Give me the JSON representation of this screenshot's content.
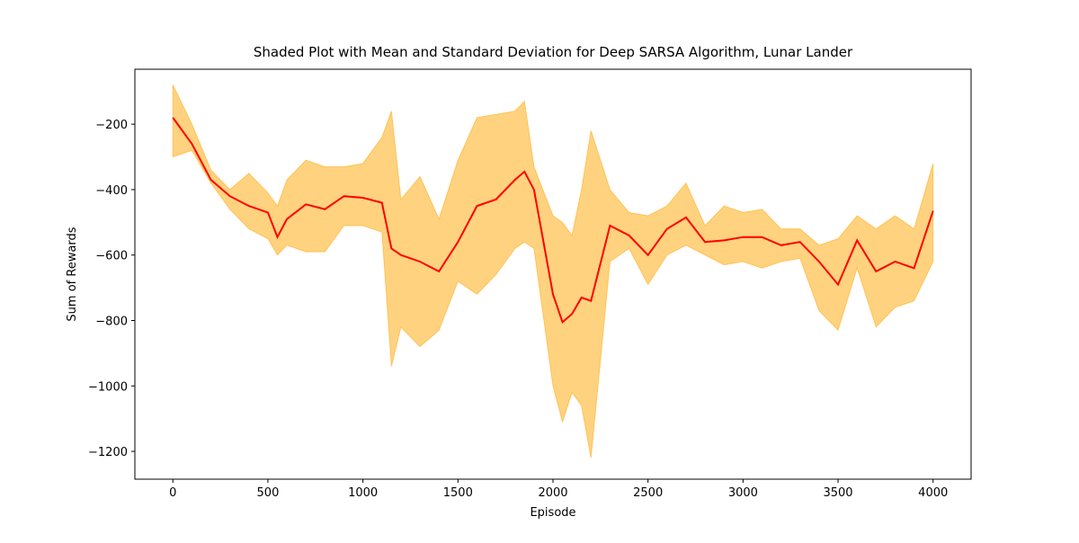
{
  "chart_data": {
    "type": "line",
    "title": "Shaded Plot with Mean and Standard Deviation for Deep SARSA Algorithm, Lunar Lander",
    "x_label": "Episode",
    "y_label": "Sum of Rewards",
    "x": [
      0,
      100,
      200,
      300,
      400,
      500,
      550,
      600,
      700,
      800,
      900,
      1000,
      1100,
      1150,
      1200,
      1300,
      1400,
      1500,
      1600,
      1700,
      1800,
      1850,
      1900,
      2000,
      2050,
      2100,
      2150,
      2200,
      2300,
      2400,
      2500,
      2600,
      2700,
      2800,
      2900,
      3000,
      3100,
      3200,
      3300,
      3400,
      3500,
      3600,
      3700,
      3800,
      3900,
      4000
    ],
    "series": [
      {
        "color": "#ff0000",
        "values": [
          -180,
          -260,
          -370,
          -420,
          -450,
          -470,
          -545,
          -490,
          -445,
          -460,
          -420,
          -425,
          -440,
          -580,
          -600,
          -620,
          -650,
          -560,
          -450,
          -430,
          -370,
          -345,
          -400,
          -720,
          -805,
          -780,
          -730,
          -740,
          -510,
          -540,
          -600,
          -520,
          -485,
          -560,
          -555,
          -545,
          -545,
          -570,
          -560,
          -620,
          -690,
          -555,
          -650,
          -620,
          -640,
          -465
        ]
      }
    ],
    "band": {
      "color": "#ffa500",
      "upper": [
        -80,
        -200,
        -340,
        -400,
        -350,
        -410,
        -450,
        -370,
        -310,
        -330,
        -330,
        -320,
        -240,
        -160,
        -430,
        -360,
        -490,
        -310,
        -180,
        -170,
        -160,
        -130,
        -330,
        -480,
        -500,
        -540,
        -400,
        -220,
        -400,
        -470,
        -480,
        -450,
        -380,
        -510,
        -450,
        -470,
        -460,
        -520,
        -520,
        -570,
        -550,
        -480,
        -520,
        -480,
        -520,
        -320
      ],
      "lower": [
        -300,
        -280,
        -380,
        -460,
        -520,
        -550,
        -600,
        -570,
        -590,
        -590,
        -510,
        -510,
        -530,
        -940,
        -820,
        -880,
        -830,
        -680,
        -720,
        -660,
        -580,
        -560,
        -580,
        -1000,
        -1110,
        -1020,
        -1060,
        -1220,
        -620,
        -580,
        -690,
        -600,
        -570,
        -600,
        -630,
        -620,
        -640,
        -620,
        -610,
        -770,
        -830,
        -640,
        -820,
        -760,
        -740,
        -620
      ]
    },
    "xlim": [
      -200,
      4200
    ],
    "ylim": [
      -1285,
      -32
    ],
    "xticks": [
      0,
      500,
      1000,
      1500,
      2000,
      2500,
      3000,
      3500,
      4000
    ],
    "yticks": [
      {
        "value": -1200,
        "label": "−1200"
      },
      {
        "value": -1000,
        "label": "−1000"
      },
      {
        "value": -800,
        "label": "−800"
      },
      {
        "value": -600,
        "label": "−600"
      },
      {
        "value": -400,
        "label": "−400"
      },
      {
        "value": -200,
        "label": "−200"
      }
    ]
  }
}
